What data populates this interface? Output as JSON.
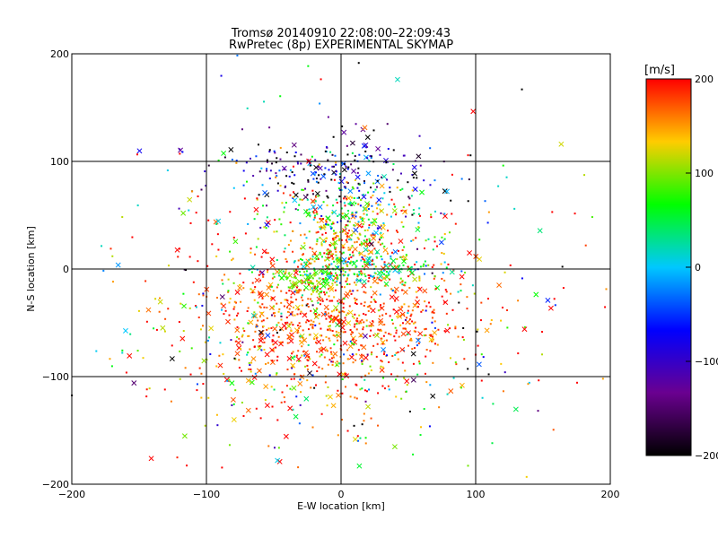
{
  "chart_data": {
    "type": "scatter",
    "title": "Tromsø 20140910 22:08:00–22:09:43",
    "subtitle": "RwPretec (8p) EXPERIMENTAL SKYMAP",
    "xlabel": "E-W location [km]",
    "ylabel": "N-S location [km]",
    "xlim": [
      -200,
      200
    ],
    "ylim": [
      -200,
      200
    ],
    "xticks": [
      -200,
      -100,
      0,
      100,
      200
    ],
    "yticks": [
      -200,
      -100,
      0,
      100,
      200
    ],
    "xtick_labels": [
      "−200",
      "−100",
      "0",
      "100",
      "200"
    ],
    "ytick_labels": [
      "−200",
      "−100",
      "0",
      "100",
      "200"
    ],
    "grid": true,
    "marker_types": [
      "dot",
      "cross"
    ],
    "colorbar": {
      "label": "[m/s]",
      "range": [
        -200,
        200
      ],
      "ticks": [
        200,
        100,
        0,
        -100,
        -200
      ],
      "tick_labels": [
        "200",
        "100",
        "0",
        "−100",
        "−200"
      ],
      "colormap": [
        "#000000",
        "#6a0090",
        "#0000ff",
        "#00c8ff",
        "#00ff00",
        "#ffcc00",
        "#ff0000"
      ]
    },
    "clusters": [
      {
        "cx": -10,
        "cy": -45,
        "sx": 45,
        "sy": 30,
        "n": 650,
        "vmean": 175,
        "vsd": 25
      },
      {
        "cx": -15,
        "cy": -55,
        "sx": 65,
        "sy": 45,
        "n": 280,
        "vmean": 150,
        "vsd": 55
      },
      {
        "cx": 10,
        "cy": 0,
        "sx": 30,
        "sy": 8,
        "n": 170,
        "vmean": 40,
        "vsd": 45
      },
      {
        "cx": -25,
        "cy": -10,
        "sx": 12,
        "sy": 5,
        "n": 60,
        "vmean": 90,
        "vsd": 15
      },
      {
        "cx": 5,
        "cy": 25,
        "sx": 15,
        "sy": 12,
        "n": 130,
        "vmean": 150,
        "vsd": 60
      },
      {
        "cx": 10,
        "cy": 50,
        "sx": 25,
        "sy": 20,
        "n": 160,
        "vmean": 60,
        "vsd": 80
      },
      {
        "cx": -5,
        "cy": 90,
        "sx": 45,
        "sy": 18,
        "n": 220,
        "vmean": -120,
        "vsd": 90
      },
      {
        "cx": -50,
        "cy": 40,
        "sx": 35,
        "sy": 30,
        "n": 70,
        "vmean": 130,
        "vsd": 90
      },
      {
        "cx": 40,
        "cy": 20,
        "sx": 35,
        "sy": 25,
        "n": 100,
        "vmean": 110,
        "vsd": 100
      },
      {
        "cx": 0,
        "cy": -90,
        "sx": 70,
        "sy": 40,
        "n": 180,
        "vmean": 60,
        "vsd": 160
      },
      {
        "cx": 0,
        "cy": 0,
        "sx": 130,
        "sy": 120,
        "n": 240,
        "vmean": 50,
        "vsd": 190
      }
    ]
  }
}
